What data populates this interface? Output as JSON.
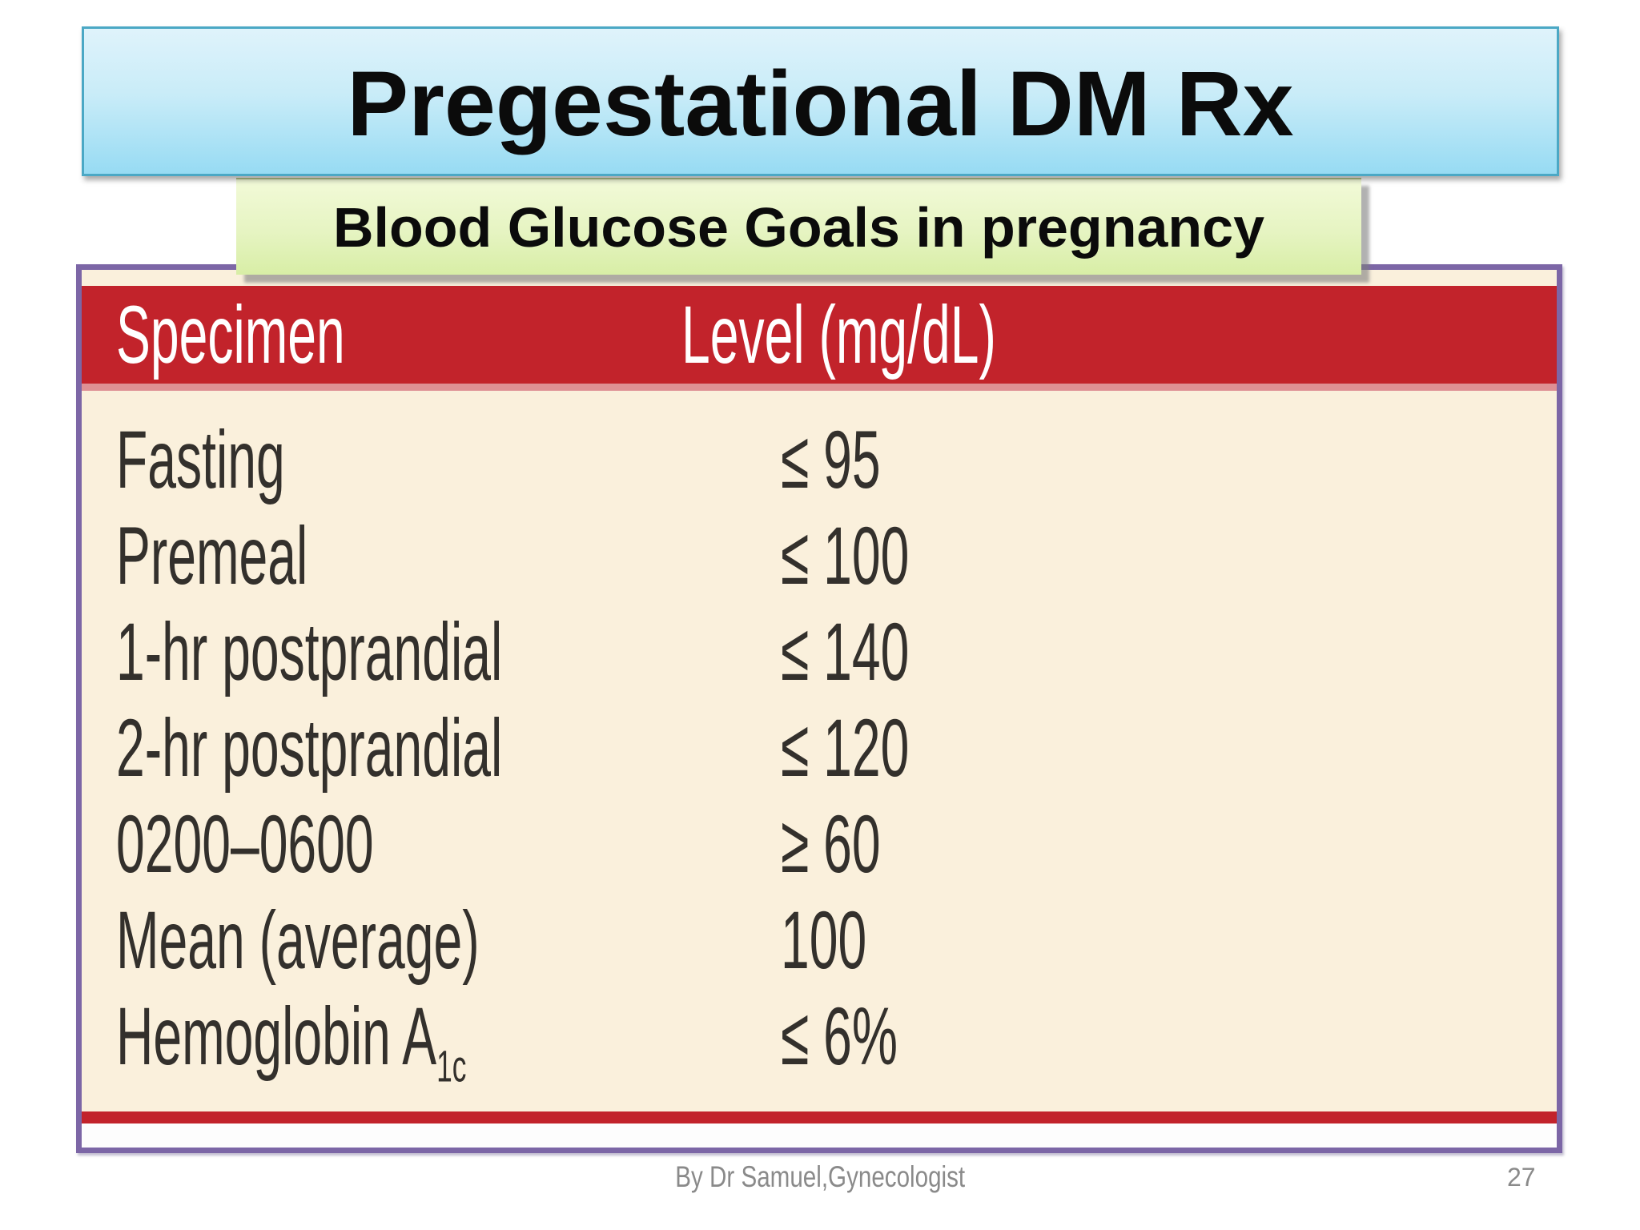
{
  "slide": {
    "title": "Pregestational DM Rx",
    "subtitle": "Blood Glucose Goals in pregnancy",
    "footer": "By Dr Samuel,Gynecologist",
    "page_number": "27"
  },
  "table": {
    "col_headers": [
      "Specimen",
      "Level (mg/dL)"
    ],
    "rows": [
      {
        "specimen": "Fasting",
        "level": "≤ 95"
      },
      {
        "specimen": "Premeal",
        "level": "≤ 100"
      },
      {
        "specimen": "1-hr postprandial",
        "level": "≤ 140"
      },
      {
        "specimen": "2-hr postprandial",
        "level": "≤ 120"
      },
      {
        "specimen": "0200–0600",
        "level": "≥ 60"
      },
      {
        "specimen": "Mean (average)",
        "level": "100"
      },
      {
        "specimen": "Hemoglobin A",
        "specimen_sub": "1c",
        "level": "≤ 6%"
      }
    ]
  },
  "colors": {
    "header_red": "#C2232B",
    "pink_rule": "#DE9094",
    "cream": "#FAF0DC",
    "purple_border": "#7C66A6",
    "teal_border": "#4BA8C5",
    "accent_blue_top": "#DFF3FB",
    "accent_blue_bottom": "#97DBF3",
    "accent_green_top": "#F2FAD8",
    "accent_green_bottom": "#D8EEA6",
    "text_dark": "#33302C",
    "footer_gray": "#8A8A8A"
  }
}
